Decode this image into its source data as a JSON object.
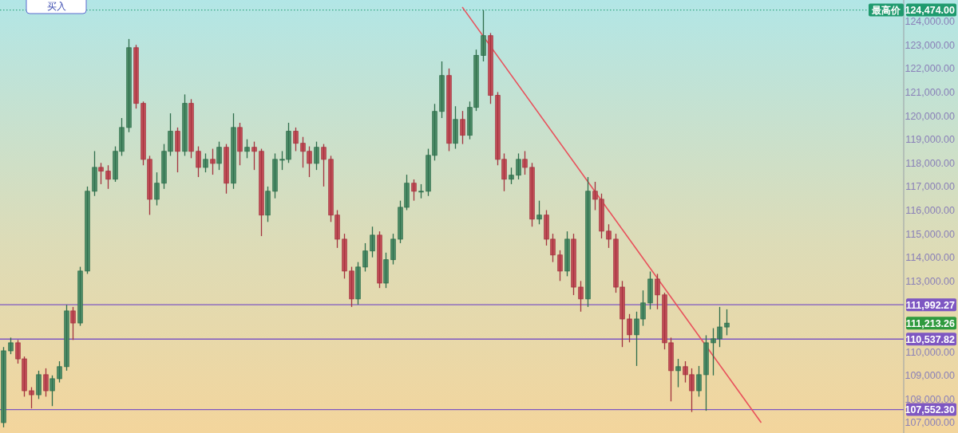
{
  "chart_data": {
    "type": "candlestick",
    "categories": [
      null,
      null,
      null,
      null,
      null,
      null,
      null,
      null,
      null,
      null,
      null,
      null,
      null,
      null,
      null,
      null,
      null,
      null,
      null,
      null,
      null,
      null,
      null,
      null,
      null,
      null,
      null,
      null,
      null,
      null,
      null,
      null,
      null,
      null,
      null,
      null,
      null,
      null,
      null,
      null,
      null,
      null,
      null,
      null,
      null,
      null,
      null,
      null,
      null,
      null,
      null,
      null,
      null,
      null,
      null,
      null,
      null,
      null,
      null,
      null,
      null,
      null,
      null,
      null,
      null,
      null,
      null,
      null,
      null,
      null,
      null,
      null,
      null,
      null,
      null,
      null,
      null,
      null,
      null,
      null,
      null,
      null,
      null,
      null,
      null,
      null,
      null,
      null,
      null,
      null,
      null,
      null,
      null,
      null,
      null,
      null,
      null,
      null,
      null,
      null,
      null,
      null,
      null,
      null,
      null,
      null,
      null,
      null,
      null,
      null,
      null,
      null,
      null,
      null,
      null,
      null,
      null,
      null,
      null,
      null,
      null,
      null,
      null,
      null,
      null,
      null,
      null,
      null,
      null,
      null
    ],
    "ohlc": [
      [
        107000,
        110200,
        106800,
        110040
      ],
      [
        110040,
        110600,
        109900,
        110380
      ],
      [
        110380,
        110500,
        109500,
        109700
      ],
      [
        109700,
        109800,
        108100,
        108350
      ],
      [
        108350,
        108500,
        107600,
        108180
      ],
      [
        108180,
        109200,
        108000,
        109030
      ],
      [
        109030,
        109300,
        108100,
        108350
      ],
      [
        108350,
        109000,
        107700,
        108860
      ],
      [
        108860,
        109600,
        108700,
        109370
      ],
      [
        109370,
        111990,
        109200,
        111730
      ],
      [
        111730,
        111900,
        110500,
        111220
      ],
      [
        111220,
        113600,
        111100,
        113420
      ],
      [
        113420,
        117000,
        113300,
        116800
      ],
      [
        116800,
        118500,
        116600,
        117810
      ],
      [
        117810,
        118000,
        117100,
        117650
      ],
      [
        117650,
        117900,
        116900,
        117310
      ],
      [
        117310,
        118700,
        117200,
        118490
      ],
      [
        118490,
        119900,
        118300,
        119500
      ],
      [
        119500,
        123250,
        119300,
        122880
      ],
      [
        122880,
        123000,
        120300,
        120520
      ],
      [
        120520,
        120600,
        117900,
        118150
      ],
      [
        118150,
        118300,
        115800,
        116460
      ],
      [
        116460,
        117600,
        116200,
        117140
      ],
      [
        117140,
        118800,
        116900,
        118490
      ],
      [
        118490,
        120100,
        118300,
        119340
      ],
      [
        119340,
        119500,
        117600,
        118490
      ],
      [
        118490,
        120900,
        118300,
        120520
      ],
      [
        120520,
        120700,
        118200,
        118490
      ],
      [
        118490,
        118700,
        117400,
        117810
      ],
      [
        117810,
        118400,
        117600,
        118150
      ],
      [
        118150,
        118600,
        117500,
        117980
      ],
      [
        117980,
        118900,
        117700,
        118660
      ],
      [
        118660,
        118800,
        116700,
        117140
      ],
      [
        117140,
        120100,
        116900,
        119500
      ],
      [
        119500,
        119700,
        117900,
        118490
      ],
      [
        118490,
        119000,
        118200,
        118660
      ],
      [
        118660,
        118900,
        117700,
        118490
      ],
      [
        118490,
        118600,
        114900,
        115790
      ],
      [
        115790,
        117000,
        115500,
        116800
      ],
      [
        116800,
        118400,
        116500,
        118150
      ],
      [
        118150,
        118500,
        117700,
        118150
      ],
      [
        118150,
        119700,
        118000,
        119340
      ],
      [
        119340,
        119500,
        118500,
        118830
      ],
      [
        118830,
        119100,
        117800,
        118490
      ],
      [
        118490,
        118700,
        117400,
        117980
      ],
      [
        117980,
        118900,
        117700,
        118660
      ],
      [
        118660,
        118800,
        117000,
        118150
      ],
      [
        118150,
        118300,
        115500,
        115790
      ],
      [
        115790,
        116000,
        114400,
        114770
      ],
      [
        114770,
        115000,
        113100,
        113420
      ],
      [
        113420,
        113600,
        111900,
        112240
      ],
      [
        112240,
        113800,
        112000,
        113590
      ],
      [
        113590,
        114600,
        113400,
        114270
      ],
      [
        114270,
        115300,
        114000,
        114940
      ],
      [
        114940,
        115100,
        112700,
        112910
      ],
      [
        112910,
        114200,
        112700,
        113900
      ],
      [
        113900,
        115000,
        113700,
        114770
      ],
      [
        114770,
        116400,
        114600,
        116120
      ],
      [
        116120,
        117500,
        116000,
        117140
      ],
      [
        117140,
        117300,
        116400,
        116800
      ],
      [
        116800,
        117100,
        116500,
        116800
      ],
      [
        116800,
        118600,
        116600,
        118320
      ],
      [
        118320,
        120500,
        118100,
        120180
      ],
      [
        120180,
        122300,
        119900,
        121700
      ],
      [
        121700,
        122000,
        118500,
        118830
      ],
      [
        118830,
        120400,
        118600,
        119840
      ],
      [
        119840,
        120200,
        118800,
        119170
      ],
      [
        119170,
        120600,
        119000,
        120350
      ],
      [
        120350,
        122800,
        120200,
        122550
      ],
      [
        122550,
        124474,
        122300,
        123390
      ],
      [
        123390,
        123500,
        120500,
        120860
      ],
      [
        120860,
        121000,
        117900,
        118150
      ],
      [
        118150,
        118400,
        116800,
        117310
      ],
      [
        117310,
        117800,
        117100,
        117480
      ],
      [
        117480,
        118400,
        117300,
        118150
      ],
      [
        118150,
        118500,
        117500,
        117810
      ],
      [
        117810,
        118000,
        115300,
        115620
      ],
      [
        115620,
        116400,
        115400,
        115790
      ],
      [
        115790,
        116000,
        114500,
        114770
      ],
      [
        114770,
        115000,
        113800,
        114100
      ],
      [
        114100,
        114300,
        113000,
        113420
      ],
      [
        113420,
        115100,
        113200,
        114770
      ],
      [
        114770,
        115000,
        112400,
        112740
      ],
      [
        112740,
        113000,
        111700,
        112240
      ],
      [
        112240,
        117400,
        111900,
        116800
      ],
      [
        116800,
        117200,
        116000,
        116460
      ],
      [
        116460,
        116700,
        114800,
        115110
      ],
      [
        115110,
        115400,
        114400,
        114770
      ],
      [
        114770,
        115000,
        112500,
        112740
      ],
      [
        112740,
        113000,
        110200,
        111390
      ],
      [
        111390,
        111600,
        110400,
        110720
      ],
      [
        110720,
        111700,
        109400,
        111390
      ],
      [
        111390,
        112600,
        111100,
        112070
      ],
      [
        112070,
        113400,
        111800,
        113080
      ],
      [
        113080,
        113300,
        111800,
        112410
      ],
      [
        112410,
        112500,
        110100,
        110380
      ],
      [
        110380,
        110600,
        107900,
        109200
      ],
      [
        109200,
        109700,
        108500,
        109370
      ],
      [
        109370,
        109600,
        108700,
        109030
      ],
      [
        109030,
        109300,
        107450,
        108350
      ],
      [
        108350,
        109400,
        108100,
        109030
      ],
      [
        109030,
        110700,
        107500,
        110380
      ],
      [
        110380,
        111000,
        109000,
        110550
      ],
      [
        110550,
        111900,
        110200,
        111050
      ],
      [
        111050,
        111800,
        110700,
        111213.26
      ],
      null,
      null,
      null,
      null,
      null,
      null,
      null,
      null,
      null,
      null,
      null,
      null,
      null,
      null,
      null,
      null,
      null,
      null,
      null,
      null,
      null,
      null,
      null,
      null,
      null
    ],
    "series": [
      {
        "type": "line",
        "values": [
          null,
          null,
          null,
          null,
          null,
          null,
          null,
          null,
          null,
          null,
          null,
          null,
          null,
          null,
          null,
          null,
          null,
          null,
          null,
          null,
          null,
          null,
          null,
          null,
          null,
          null,
          null,
          null,
          null,
          null,
          null,
          null,
          null,
          null,
          null,
          null,
          null,
          null,
          null,
          null,
          null,
          null,
          null,
          null,
          null,
          null,
          null,
          null,
          null,
          null,
          null,
          null,
          null,
          null,
          null,
          null,
          null,
          null,
          null,
          null,
          null,
          null,
          null,
          null,
          null,
          null,
          124600,
          null,
          null,
          null,
          null,
          null,
          null,
          null,
          null,
          null,
          null,
          null,
          null,
          null,
          null,
          null,
          null,
          null,
          null,
          null,
          null,
          null,
          null,
          null,
          null,
          null,
          null,
          null,
          null,
          null,
          null,
          null,
          null,
          null,
          null,
          null,
          null,
          null,
          null,
          null,
          null,
          null,
          null,
          107000,
          null,
          null,
          null,
          null,
          null,
          null,
          null,
          null,
          null,
          null,
          null,
          null,
          null,
          null,
          null,
          null,
          null,
          null,
          null,
          null
        ],
        "color": "#e8505b"
      }
    ],
    "ylim": [
      106560,
      124900
    ],
    "yticks": [
      {
        "value": 107000,
        "label": "107,000.00"
      },
      {
        "value": 108000,
        "label": "108,000.00"
      },
      {
        "value": 109000,
        "label": "109,000.00"
      },
      {
        "value": 110000,
        "label": "110,000.00"
      },
      {
        "value": 113000,
        "label": "113,000.00"
      },
      {
        "value": 114000,
        "label": "114,000.00"
      },
      {
        "value": 115000,
        "label": "115,000.00"
      },
      {
        "value": 116000,
        "label": "116,000.00"
      },
      {
        "value": 117000,
        "label": "117,000.00"
      },
      {
        "value": 118000,
        "label": "118,000.00"
      },
      {
        "value": 119000,
        "label": "119,000.00"
      },
      {
        "value": 120000,
        "label": "120,000.00"
      },
      {
        "value": 121000,
        "label": "121,000.00"
      },
      {
        "value": 122000,
        "label": "122,000.00"
      },
      {
        "value": 123000,
        "label": "123,000.00"
      },
      {
        "value": 124000,
        "label": "124,000.00"
      }
    ],
    "tick_labels": "y",
    "ref_lines": [
      {
        "axis": "y",
        "value": 124474,
        "label": "124,474.00",
        "color": "#1f9a6e",
        "line_style": "dotted"
      },
      {
        "axis": "y",
        "value": 111992.27,
        "label": "111,992.27",
        "color": "#7e57c2"
      },
      {
        "axis": "y",
        "value": 110537.82,
        "label": "110,537.82",
        "color": "#7e57c2"
      },
      {
        "axis": "y",
        "value": 107552.3,
        "label": "107,552.30",
        "color": "#7e57c2"
      }
    ],
    "annotations": [
      {
        "text": "最高价",
        "y": 124474
      },
      "111,213.26",
      "买入"
    ]
  }
}
